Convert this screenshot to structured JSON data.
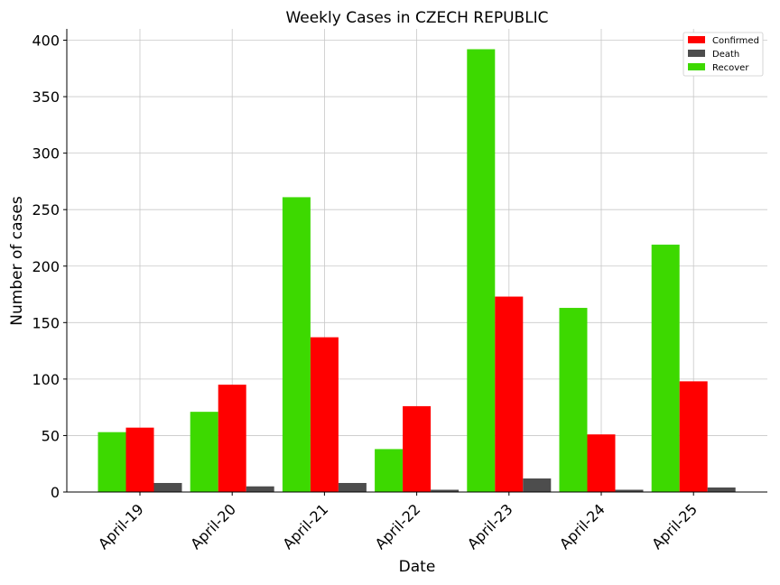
{
  "chart_data": {
    "type": "bar",
    "title": "Weekly Cases in CZECH REPUBLIC",
    "xlabel": "Date",
    "ylabel": "Number of cases",
    "categories": [
      "April-19",
      "April-20",
      "April-21",
      "April-22",
      "April-23",
      "April-24",
      "April-25"
    ],
    "series": [
      {
        "name": "Confirmed",
        "color": "#ff0000",
        "values": [
          57,
          95,
          137,
          76,
          173,
          51,
          98
        ]
      },
      {
        "name": "Death",
        "color": "#4d4d4d",
        "values": [
          8,
          5,
          8,
          2,
          12,
          2,
          4
        ]
      },
      {
        "name": "Recover",
        "color": "#3dd900",
        "values": [
          53,
          71,
          261,
          38,
          392,
          163,
          219
        ]
      }
    ],
    "ylim": [
      0,
      410
    ],
    "yticks": [
      0,
      50,
      100,
      150,
      200,
      250,
      300,
      350,
      400
    ],
    "grid": true,
    "legend_position": "top-right"
  }
}
